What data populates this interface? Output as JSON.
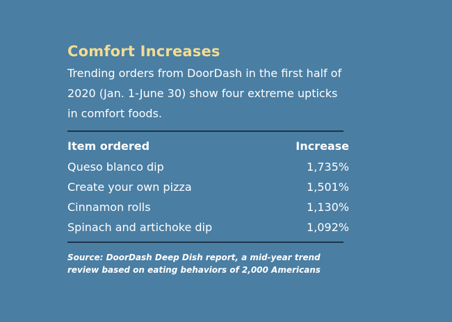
{
  "title": "Comfort Increases",
  "intro": "Trending orders from DoorDash in the first half of 2020 (Jan. 1-June 30) show four extreme upticks in comfort foods.",
  "table": {
    "headers": [
      "Item ordered",
      "Increase"
    ],
    "rows": [
      {
        "item": "Queso blanco dip",
        "increase": "1,735%"
      },
      {
        "item": "Create your own pizza",
        "increase": "1,501%"
      },
      {
        "item": "Cinnamon rolls",
        "increase": "1,130%"
      },
      {
        "item": "Spinach and artichoke dip",
        "increase": "1,092%"
      }
    ]
  },
  "source": "Source: DoorDash Deep Dish report, a mid-year trend review based on eating behaviors of 2,000 Americans",
  "colors": {
    "background": "#4a7ea3",
    "title": "#f3dc92",
    "text": "#ffffff",
    "rule": "#1d3447"
  }
}
